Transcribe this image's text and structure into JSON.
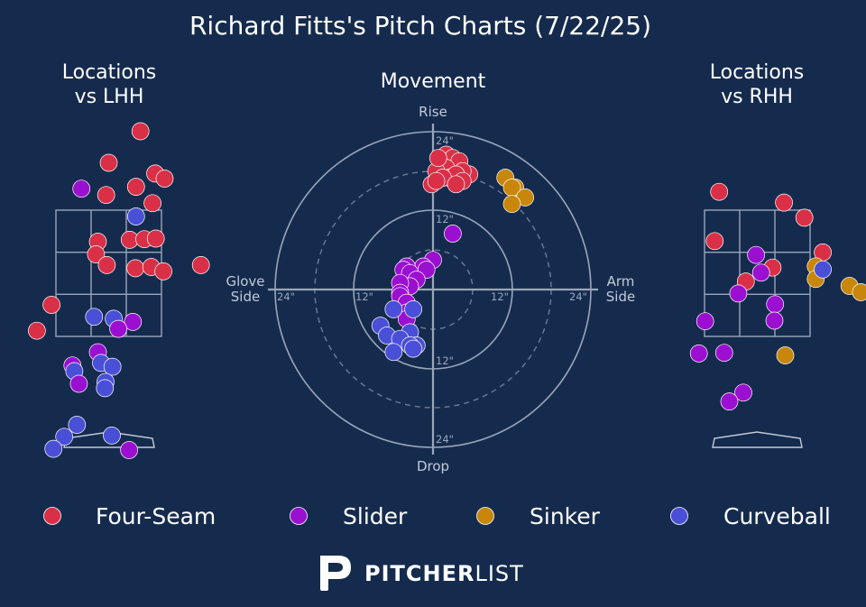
{
  "title": "Richard Fitts's Pitch Charts (7/22/25)",
  "panels": {
    "lhh_title": [
      "Locations",
      "vs LHH"
    ],
    "movement_title": "Movement",
    "rhh_title": [
      "Locations",
      "vs RHH"
    ]
  },
  "movement_axes": {
    "top": "Rise",
    "bottom": "Drop",
    "left": [
      "Glove",
      "Side"
    ],
    "right": [
      "Arm",
      "Side"
    ],
    "ring_labels": {
      "top_outer": "24\"",
      "top_inner": "12\"",
      "bottom_inner": "12\"",
      "bottom_outer": "24\"",
      "left_outer": "24\"",
      "left_inner": "12\"",
      "right_inner": "12\"",
      "right_outer": "24\""
    }
  },
  "colors": {
    "background": "#152b4e",
    "Four-Seam": "#d93048",
    "Slider": "#9b0fd1",
    "Sinker": "#c8860a",
    "Curveball": "#4a4fd8",
    "grid": "#9aa6b8"
  },
  "legend": [
    "Four-Seam",
    "Slider",
    "Sinker",
    "Curveball"
  ],
  "logo": {
    "bold": "PITCHER",
    "light": "LIST"
  },
  "chart_data": [
    {
      "type": "scatter",
      "name": "Locations vs LHH",
      "units": "feet (x: catcher's view horizontal, y: height)",
      "zone": {
        "x": [
          -0.83,
          0.83
        ],
        "y": [
          1.5,
          3.5
        ]
      },
      "points": [
        {
          "pitch": "Four-Seam",
          "x": 0.5,
          "y": 4.75
        },
        {
          "pitch": "Four-Seam",
          "x": 0.0,
          "y": 4.25
        },
        {
          "pitch": "Four-Seam",
          "x": 0.73,
          "y": 4.08
        },
        {
          "pitch": "Four-Seam",
          "x": 0.88,
          "y": 4.0
        },
        {
          "pitch": "Four-Seam",
          "x": 0.43,
          "y": 3.87
        },
        {
          "pitch": "Four-Seam",
          "x": -0.04,
          "y": 3.74
        },
        {
          "pitch": "Four-Seam",
          "x": 0.69,
          "y": 3.61
        },
        {
          "pitch": "Four-Seam",
          "x": -0.17,
          "y": 3.0
        },
        {
          "pitch": "Four-Seam",
          "x": 0.33,
          "y": 3.03
        },
        {
          "pitch": "Four-Seam",
          "x": 0.56,
          "y": 3.04
        },
        {
          "pitch": "Four-Seam",
          "x": 0.74,
          "y": 3.05
        },
        {
          "pitch": "Four-Seam",
          "x": -0.2,
          "y": 2.8
        },
        {
          "pitch": "Four-Seam",
          "x": -0.03,
          "y": 2.63
        },
        {
          "pitch": "Four-Seam",
          "x": 0.42,
          "y": 2.58
        },
        {
          "pitch": "Four-Seam",
          "x": 0.67,
          "y": 2.6
        },
        {
          "pitch": "Four-Seam",
          "x": 0.86,
          "y": 2.53
        },
        {
          "pitch": "Four-Seam",
          "x": 1.45,
          "y": 2.63
        },
        {
          "pitch": "Four-Seam",
          "x": -0.9,
          "y": 2.0
        },
        {
          "pitch": "Four-Seam",
          "x": -1.13,
          "y": 1.59
        },
        {
          "pitch": "Curveball",
          "x": 0.43,
          "y": 3.4
        },
        {
          "pitch": "Slider",
          "x": -0.43,
          "y": 3.84
        },
        {
          "pitch": "Curveball",
          "x": -0.23,
          "y": 1.81
        },
        {
          "pitch": "Curveball",
          "x": 0.08,
          "y": 1.78
        },
        {
          "pitch": "Slider",
          "x": 0.38,
          "y": 1.73
        },
        {
          "pitch": "Slider",
          "x": 0.15,
          "y": 1.62
        },
        {
          "pitch": "Slider",
          "x": -0.17,
          "y": 1.25
        },
        {
          "pitch": "Curveball",
          "x": -0.12,
          "y": 1.08
        },
        {
          "pitch": "Curveball",
          "x": 0.06,
          "y": 1.02
        },
        {
          "pitch": "Slider",
          "x": -0.57,
          "y": 1.04
        },
        {
          "pitch": "Curveball",
          "x": -0.54,
          "y": 0.95
        },
        {
          "pitch": "Slider",
          "x": -0.47,
          "y": 0.75
        },
        {
          "pitch": "Curveball",
          "x": -0.05,
          "y": 0.78
        },
        {
          "pitch": "Curveball",
          "x": -0.06,
          "y": 0.68
        },
        {
          "pitch": "Curveball",
          "x": -0.5,
          "y": 0.1
        },
        {
          "pitch": "Curveball",
          "x": -0.7,
          "y": -0.09
        },
        {
          "pitch": "Curveball",
          "x": 0.05,
          "y": -0.07
        },
        {
          "pitch": "Curveball",
          "x": -0.87,
          "y": -0.28
        },
        {
          "pitch": "Slider",
          "x": 0.32,
          "y": -0.3
        }
      ]
    },
    {
      "type": "scatter",
      "name": "Movement",
      "units": "inches (x: arm side positive, y: rise positive)",
      "rings": [
        6,
        12,
        18,
        24
      ],
      "points": [
        {
          "pitch": "Four-Seam",
          "x": 1.0,
          "y": 20.0
        },
        {
          "pitch": "Four-Seam",
          "x": 2.0,
          "y": 20.5
        },
        {
          "pitch": "Four-Seam",
          "x": 3.0,
          "y": 20.0
        },
        {
          "pitch": "Four-Seam",
          "x": 4.0,
          "y": 19.5
        },
        {
          "pitch": "Four-Seam",
          "x": 5.5,
          "y": 17.5
        },
        {
          "pitch": "Four-Seam",
          "x": 4.5,
          "y": 18.0
        },
        {
          "pitch": "Four-Seam",
          "x": 2.0,
          "y": 18.5
        },
        {
          "pitch": "Four-Seam",
          "x": 0.5,
          "y": 18.0
        },
        {
          "pitch": "Four-Seam",
          "x": 2.5,
          "y": 17.0
        },
        {
          "pitch": "Four-Seam",
          "x": 3.5,
          "y": 17.5
        },
        {
          "pitch": "Four-Seam",
          "x": 1.5,
          "y": 17.0
        },
        {
          "pitch": "Four-Seam",
          "x": 4.5,
          "y": 16.5
        },
        {
          "pitch": "Four-Seam",
          "x": -0.2,
          "y": 16.0
        },
        {
          "pitch": "Four-Seam",
          "x": 3.5,
          "y": 16.0
        },
        {
          "pitch": "Four-Seam",
          "x": 0.5,
          "y": 16.5
        },
        {
          "pitch": "Four-Seam",
          "x": 0.8,
          "y": 20.0
        },
        {
          "pitch": "Sinker",
          "x": 11.0,
          "y": 17.0
        },
        {
          "pitch": "Sinker",
          "x": 12.5,
          "y": 15.5
        },
        {
          "pitch": "Sinker",
          "x": 12.0,
          "y": 15.5
        },
        {
          "pitch": "Sinker",
          "x": 14.0,
          "y": 14.0
        },
        {
          "pitch": "Sinker",
          "x": 12.0,
          "y": 13.0
        },
        {
          "pitch": "Slider",
          "x": 3.0,
          "y": 8.5
        },
        {
          "pitch": "Slider",
          "x": 0.0,
          "y": 4.5
        },
        {
          "pitch": "Slider",
          "x": -1.5,
          "y": 3.5
        },
        {
          "pitch": "Slider",
          "x": -4.0,
          "y": 3.5
        },
        {
          "pitch": "Slider",
          "x": -4.5,
          "y": 3.0
        },
        {
          "pitch": "Slider",
          "x": -3.5,
          "y": 2.5
        },
        {
          "pitch": "Slider",
          "x": -1.0,
          "y": 3.0
        },
        {
          "pitch": "Slider",
          "x": -2.5,
          "y": 1.5
        },
        {
          "pitch": "Slider",
          "x": -3.5,
          "y": 0.5
        },
        {
          "pitch": "Slider",
          "x": -5.0,
          "y": 1.0
        },
        {
          "pitch": "Slider",
          "x": -5.0,
          "y": -0.5
        },
        {
          "pitch": "Slider",
          "x": -5.0,
          "y": -1.0
        },
        {
          "pitch": "Slider",
          "x": -4.0,
          "y": -2.0
        },
        {
          "pitch": "Slider",
          "x": -4.0,
          "y": -3.5
        },
        {
          "pitch": "Slider",
          "x": -4.0,
          "y": -4.5
        },
        {
          "pitch": "Curveball",
          "x": -6.0,
          "y": -3.0
        },
        {
          "pitch": "Curveball",
          "x": -3.0,
          "y": -3.0
        },
        {
          "pitch": "Curveball",
          "x": -8.0,
          "y": -5.5
        },
        {
          "pitch": "Curveball",
          "x": -7.0,
          "y": -7.0
        },
        {
          "pitch": "Curveball",
          "x": -3.5,
          "y": -6.5
        },
        {
          "pitch": "Curveball",
          "x": -5.0,
          "y": -7.5
        },
        {
          "pitch": "Curveball",
          "x": -2.5,
          "y": -8.5
        },
        {
          "pitch": "Curveball",
          "x": -3.5,
          "y": -8.5
        },
        {
          "pitch": "Curveball",
          "x": -6.0,
          "y": -9.5
        },
        {
          "pitch": "Curveball",
          "x": -3.0,
          "y": -9.0
        }
      ]
    },
    {
      "type": "scatter",
      "name": "Locations vs RHH",
      "units": "feet (x: catcher's view horizontal, y: height)",
      "zone": {
        "x": [
          -0.83,
          0.83
        ],
        "y": [
          1.5,
          3.5
        ]
      },
      "points": [
        {
          "pitch": "Four-Seam",
          "x": 1.96,
          "y": 4.58
        },
        {
          "pitch": "Four-Seam",
          "x": -0.6,
          "y": 3.79
        },
        {
          "pitch": "Four-Seam",
          "x": 0.42,
          "y": 3.62
        },
        {
          "pitch": "Four-Seam",
          "x": 0.74,
          "y": 3.38
        },
        {
          "pitch": "Four-Seam",
          "x": -0.67,
          "y": 3.01
        },
        {
          "pitch": "Four-Seam",
          "x": 1.03,
          "y": 2.83
        },
        {
          "pitch": "Four-Seam",
          "x": 0.24,
          "y": 2.59
        },
        {
          "pitch": "Four-Seam",
          "x": -0.18,
          "y": 2.37
        },
        {
          "pitch": "Slider",
          "x": -0.02,
          "y": 2.79
        },
        {
          "pitch": "Slider",
          "x": 0.06,
          "y": 2.51
        },
        {
          "pitch": "Slider",
          "x": -0.3,
          "y": 2.18
        },
        {
          "pitch": "Slider",
          "x": 0.28,
          "y": 2.01
        },
        {
          "pitch": "Slider",
          "x": 0.27,
          "y": 1.75
        },
        {
          "pitch": "Slider",
          "x": -0.82,
          "y": 1.74
        },
        {
          "pitch": "Slider",
          "x": -0.92,
          "y": 1.23
        },
        {
          "pitch": "Slider",
          "x": -0.52,
          "y": 1.24
        },
        {
          "pitch": "Slider",
          "x": -0.22,
          "y": 0.61
        },
        {
          "pitch": "Slider",
          "x": -0.44,
          "y": 0.47
        },
        {
          "pitch": "Sinker",
          "x": 0.92,
          "y": 2.61
        },
        {
          "pitch": "Sinker",
          "x": 0.92,
          "y": 2.41
        },
        {
          "pitch": "Sinker",
          "x": 1.45,
          "y": 2.3
        },
        {
          "pitch": "Sinker",
          "x": 1.63,
          "y": 2.2
        },
        {
          "pitch": "Sinker",
          "x": 0.44,
          "y": 1.2
        },
        {
          "pitch": "Curveball",
          "x": 1.03,
          "y": 2.56
        }
      ]
    }
  ]
}
